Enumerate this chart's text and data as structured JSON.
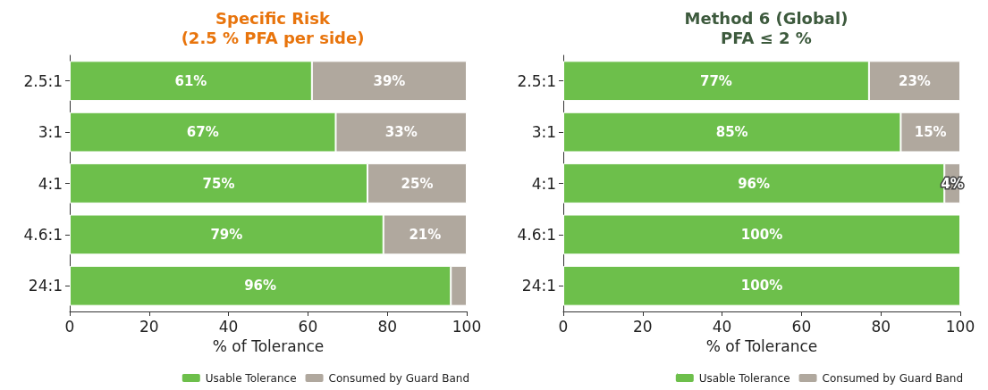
{
  "chart_data": [
    {
      "type": "bar",
      "orientation": "horizontal",
      "stacked": true,
      "title": "Specific Risk\n(2.5 % PFA per side)",
      "xlabel": "% of Tolerance",
      "categories": [
        "2.5:1",
        "3:1",
        "4:1",
        "4.6:1",
        "24:1"
      ],
      "xlim": [
        0,
        100
      ],
      "xticks": [
        0,
        20,
        40,
        60,
        80,
        100
      ],
      "legend": "bottom right",
      "series": [
        {
          "name": "Usable Tolerance",
          "color": "#6dbf4b",
          "values": [
            61,
            67,
            75,
            79,
            96
          ],
          "value_labels": [
            "61%",
            "67%",
            "75%",
            "79%",
            "96%"
          ]
        },
        {
          "name": "Consumed by Guard Band",
          "color": "#b0a89e",
          "values": [
            39,
            33,
            25,
            21,
            4
          ],
          "value_labels": [
            "39%",
            "33%",
            "25%",
            "21%",
            null
          ]
        }
      ]
    },
    {
      "type": "bar",
      "orientation": "horizontal",
      "stacked": true,
      "title": "Method 6 (Global)\nPFA ≤ 2 %",
      "xlabel": "% of Tolerance",
      "categories": [
        "2.5:1",
        "3:1",
        "4:1",
        "4.6:1",
        "24:1"
      ],
      "xlim": [
        0,
        100
      ],
      "xticks": [
        0,
        20,
        40,
        60,
        80,
        100
      ],
      "legend": "bottom right",
      "series": [
        {
          "name": "Usable Tolerance",
          "color": "#6dbf4b",
          "values": [
            77,
            85,
            96,
            100,
            100
          ],
          "value_labels": [
            "77%",
            "85%",
            "96%",
            "100%",
            "100%"
          ]
        },
        {
          "name": "Consumed by Guard Band",
          "color": "#b0a89e",
          "values": [
            23,
            15,
            4,
            0,
            0
          ],
          "value_labels": [
            "23%",
            "15%",
            "4%",
            null,
            null
          ]
        }
      ]
    }
  ]
}
